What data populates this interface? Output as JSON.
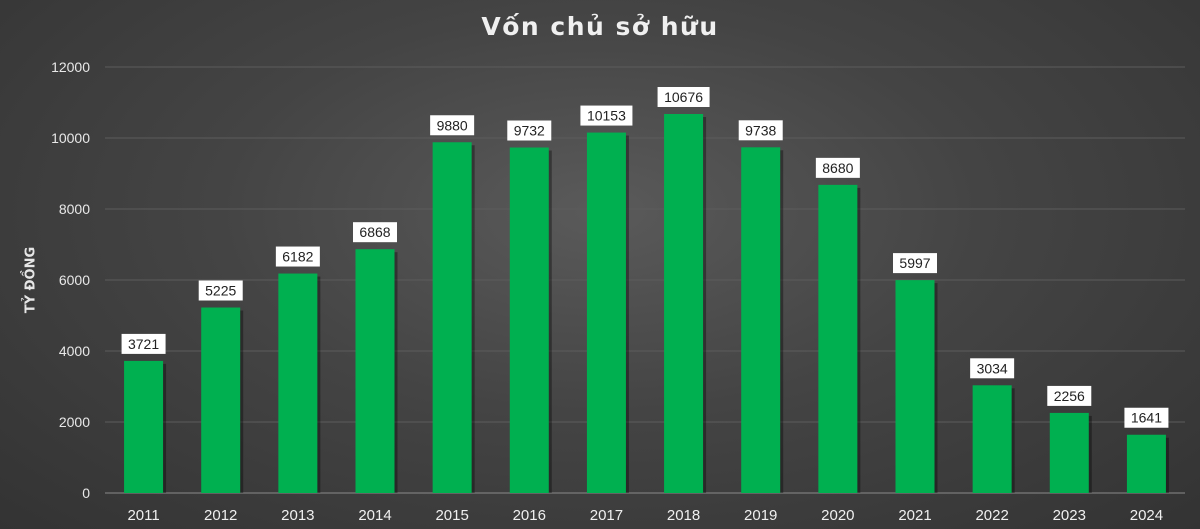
{
  "chart_data": {
    "type": "bar",
    "title": "Vốn chủ sở hữu",
    "xlabel": "",
    "ylabel": "TỶ ĐỒNG",
    "categories": [
      "2011",
      "2012",
      "2013",
      "2014",
      "2015",
      "2016",
      "2017",
      "2018",
      "2019",
      "2020",
      "2021",
      "2022",
      "2023",
      "2024"
    ],
    "values": [
      3721,
      5225,
      6182,
      6868,
      9880,
      9732,
      10153,
      10676,
      9738,
      8680,
      5997,
      3034,
      2256,
      1641
    ],
    "ylim": [
      0,
      12000
    ],
    "yticks": [
      0,
      2000,
      4000,
      6000,
      8000,
      10000,
      12000
    ],
    "grid": true,
    "legend": "none",
    "bar_color": "#00B050",
    "data_label_bg": "#ffffff"
  }
}
